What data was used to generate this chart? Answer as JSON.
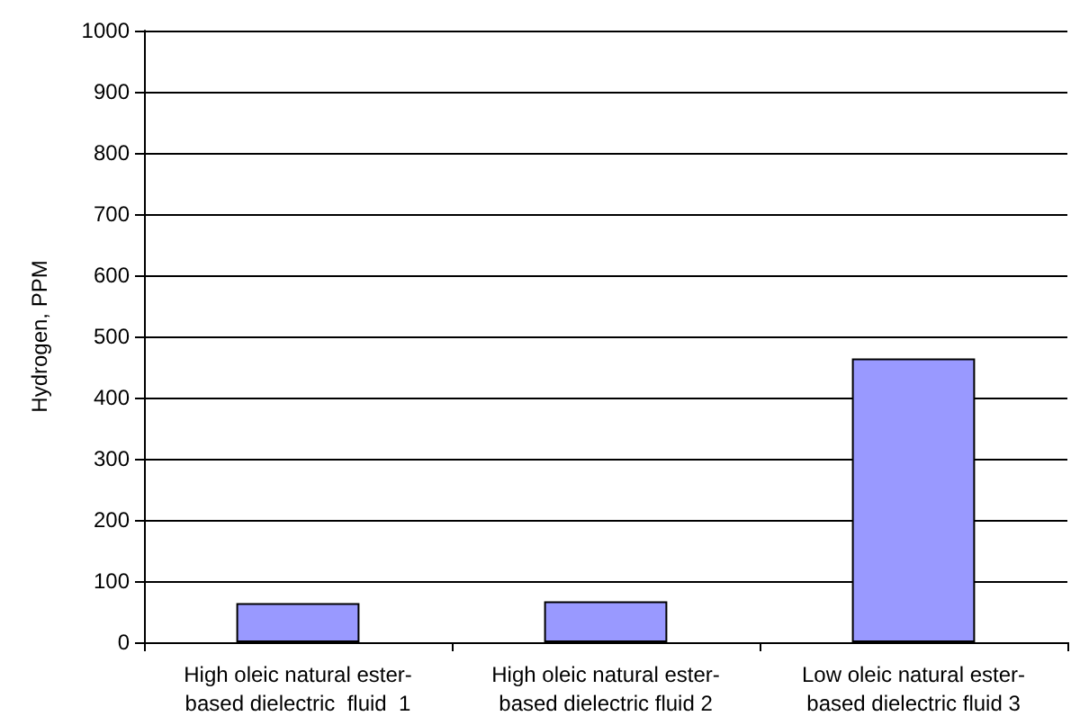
{
  "chart_data": {
    "type": "bar",
    "ylabel": "Hydrogen, PPM",
    "categories": [
      "High oleic natural ester-\nbased dielectric  fluid  1",
      "High oleic natural ester-\nbased dielectric fluid 2",
      "Low oleic natural ester-\nbased dielectric fluid 3"
    ],
    "values": [
      64,
      67,
      464
    ],
    "color": "#9999ff",
    "ylim": [
      0,
      1000
    ],
    "yticks": [
      0,
      100,
      200,
      300,
      400,
      500,
      600,
      700,
      800,
      900,
      1000
    ],
    "grid": "y"
  }
}
